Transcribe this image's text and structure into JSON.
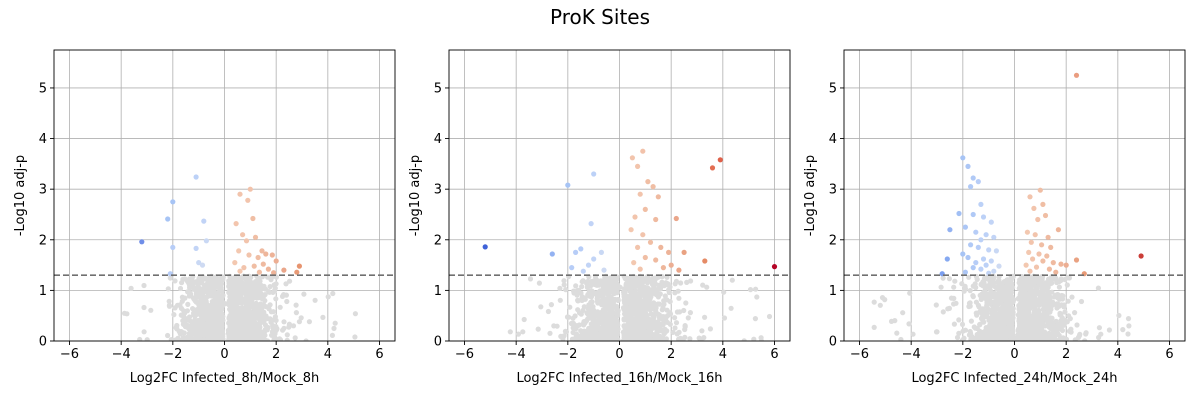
{
  "figure": {
    "title": "ProK Sites"
  },
  "chart_data": [
    {
      "type": "scatter",
      "xlabel": "Log2FC Infected_8h/Mock_8h",
      "ylabel": "-Log10 adj-p",
      "xlim": [
        -6.6,
        6.6
      ],
      "ylim": [
        0,
        5.75
      ],
      "xticks": [
        "−6",
        "−4",
        "−2",
        "0",
        "2",
        "4",
        "6"
      ],
      "yticks": [
        "0",
        "1",
        "2",
        "3",
        "4",
        "5"
      ],
      "grid": true,
      "threshold_y": 1.3,
      "background_seed": 8,
      "background_count": 1400,
      "background_xrange": [
        -4,
        6
      ],
      "colors": {
        "background": "#dcdcdc",
        "threshold": "#707070"
      },
      "significant_points": [
        {
          "x": -3.2,
          "y": 1.96,
          "color": "#6f8ee8"
        },
        {
          "x": -2.2,
          "y": 2.41,
          "color": "#a7c4f5"
        },
        {
          "x": -2.0,
          "y": 2.75,
          "color": "#a7c4f5"
        },
        {
          "x": -1.1,
          "y": 3.24,
          "color": "#bcd1f7"
        },
        {
          "x": -0.8,
          "y": 2.37,
          "color": "#c1d3f6"
        },
        {
          "x": -2.0,
          "y": 1.85,
          "color": "#b7cdf7"
        },
        {
          "x": -1.1,
          "y": 1.83,
          "color": "#c2d4f6"
        },
        {
          "x": -0.7,
          "y": 1.98,
          "color": "#c9d8f4"
        },
        {
          "x": -1.0,
          "y": 1.55,
          "color": "#c9d8f4"
        },
        {
          "x": -0.85,
          "y": 1.5,
          "color": "#cedaf2"
        },
        {
          "x": -2.1,
          "y": 1.33,
          "color": "#b7cdf7"
        },
        {
          "x": 0.45,
          "y": 2.32,
          "color": "#f3c5ad"
        },
        {
          "x": 0.6,
          "y": 2.9,
          "color": "#f2c4ac"
        },
        {
          "x": 0.7,
          "y": 2.1,
          "color": "#f2c4ac"
        },
        {
          "x": 0.9,
          "y": 2.78,
          "color": "#f2c4ac"
        },
        {
          "x": 1.0,
          "y": 3.0,
          "color": "#f2c2aa"
        },
        {
          "x": 1.1,
          "y": 2.42,
          "color": "#f0bea4"
        },
        {
          "x": 1.2,
          "y": 2.05,
          "color": "#f0bea4"
        },
        {
          "x": 0.85,
          "y": 1.98,
          "color": "#f2c4ac"
        },
        {
          "x": 0.55,
          "y": 1.78,
          "color": "#f3c8b0"
        },
        {
          "x": 0.95,
          "y": 1.7,
          "color": "#f2c4ac"
        },
        {
          "x": 1.3,
          "y": 1.65,
          "color": "#f0bea4"
        },
        {
          "x": 1.45,
          "y": 1.78,
          "color": "#efbaa0"
        },
        {
          "x": 1.6,
          "y": 1.72,
          "color": "#eeb69b"
        },
        {
          "x": 1.85,
          "y": 1.7,
          "color": "#edb398"
        },
        {
          "x": 2.0,
          "y": 1.58,
          "color": "#ecae93"
        },
        {
          "x": 1.5,
          "y": 1.52,
          "color": "#efbaa0"
        },
        {
          "x": 1.15,
          "y": 1.48,
          "color": "#f0bea4"
        },
        {
          "x": 0.75,
          "y": 1.45,
          "color": "#f2c4ac"
        },
        {
          "x": 1.7,
          "y": 1.42,
          "color": "#eeb69b"
        },
        {
          "x": 2.3,
          "y": 1.4,
          "color": "#eaa68a"
        },
        {
          "x": 2.9,
          "y": 1.48,
          "color": "#e7946f"
        },
        {
          "x": 2.8,
          "y": 1.36,
          "color": "#e89a76"
        },
        {
          "x": 0.4,
          "y": 1.55,
          "color": "#f3c8b0"
        },
        {
          "x": 1.35,
          "y": 1.36,
          "color": "#f0bea4"
        },
        {
          "x": 0.6,
          "y": 1.38,
          "color": "#f3c8b0"
        },
        {
          "x": 1.9,
          "y": 1.35,
          "color": "#edb398"
        }
      ]
    },
    {
      "type": "scatter",
      "xlabel": "Log2FC Infected_16h/Mock_16h",
      "ylabel": "-Log10 adj-p",
      "xlim": [
        -6.6,
        6.6
      ],
      "ylim": [
        0,
        5.75
      ],
      "xticks": [
        "−6",
        "−4",
        "−2",
        "0",
        "2",
        "4",
        "6"
      ],
      "yticks": [
        "0",
        "1",
        "2",
        "3",
        "4",
        "5"
      ],
      "grid": true,
      "threshold_y": 1.3,
      "background_seed": 16,
      "background_count": 1400,
      "background_xrange": [
        -4.5,
        6
      ],
      "colors": {
        "background": "#dcdcdc",
        "threshold": "#707070"
      },
      "significant_points": [
        {
          "x": -5.2,
          "y": 1.86,
          "color": "#3f62d8"
        },
        {
          "x": -2.6,
          "y": 1.72,
          "color": "#93b2f2"
        },
        {
          "x": -2.0,
          "y": 3.08,
          "color": "#a7c4f5"
        },
        {
          "x": -1.0,
          "y": 3.3,
          "color": "#bcd1f7"
        },
        {
          "x": -1.1,
          "y": 2.32,
          "color": "#c1d3f6"
        },
        {
          "x": -1.5,
          "y": 1.82,
          "color": "#b7cdf7"
        },
        {
          "x": -1.7,
          "y": 1.75,
          "color": "#b7cdf7"
        },
        {
          "x": -1.0,
          "y": 1.62,
          "color": "#c2d4f6"
        },
        {
          "x": -0.7,
          "y": 1.75,
          "color": "#c9d8f4"
        },
        {
          "x": -1.2,
          "y": 1.5,
          "color": "#c2d4f6"
        },
        {
          "x": -1.85,
          "y": 1.45,
          "color": "#b7cdf7"
        },
        {
          "x": -0.6,
          "y": 1.4,
          "color": "#cedaf2"
        },
        {
          "x": -1.4,
          "y": 1.38,
          "color": "#c2d4f6"
        },
        {
          "x": 0.5,
          "y": 3.62,
          "color": "#f2c4ac"
        },
        {
          "x": 0.9,
          "y": 3.75,
          "color": "#f2c2aa"
        },
        {
          "x": 0.7,
          "y": 3.45,
          "color": "#f2c4ac"
        },
        {
          "x": 1.1,
          "y": 3.15,
          "color": "#f0bea4"
        },
        {
          "x": 1.3,
          "y": 3.05,
          "color": "#f0bea4"
        },
        {
          "x": 0.8,
          "y": 2.9,
          "color": "#f2c4ac"
        },
        {
          "x": 1.5,
          "y": 2.85,
          "color": "#efbaa0"
        },
        {
          "x": 1.0,
          "y": 2.6,
          "color": "#f0bea4"
        },
        {
          "x": 0.6,
          "y": 2.45,
          "color": "#f2c4ac"
        },
        {
          "x": 1.4,
          "y": 2.4,
          "color": "#efbaa0"
        },
        {
          "x": 2.2,
          "y": 2.42,
          "color": "#eaa68a"
        },
        {
          "x": 0.45,
          "y": 2.2,
          "color": "#f3c8b0"
        },
        {
          "x": 0.9,
          "y": 2.1,
          "color": "#f2c4ac"
        },
        {
          "x": 1.2,
          "y": 1.95,
          "color": "#f0bea4"
        },
        {
          "x": 0.7,
          "y": 1.85,
          "color": "#f2c4ac"
        },
        {
          "x": 1.6,
          "y": 1.85,
          "color": "#eeb69b"
        },
        {
          "x": 1.9,
          "y": 1.75,
          "color": "#edb398"
        },
        {
          "x": 2.5,
          "y": 1.75,
          "color": "#e9a282"
        },
        {
          "x": 1.0,
          "y": 1.65,
          "color": "#f0bea4"
        },
        {
          "x": 1.4,
          "y": 1.6,
          "color": "#efbaa0"
        },
        {
          "x": 0.55,
          "y": 1.55,
          "color": "#f3c8b0"
        },
        {
          "x": 2.0,
          "y": 1.5,
          "color": "#ecae93"
        },
        {
          "x": 1.7,
          "y": 1.45,
          "color": "#eeb69b"
        },
        {
          "x": 0.8,
          "y": 1.42,
          "color": "#f2c4ac"
        },
        {
          "x": 2.3,
          "y": 1.4,
          "color": "#eaa68a"
        },
        {
          "x": 3.3,
          "y": 1.58,
          "color": "#e58b66"
        },
        {
          "x": 3.6,
          "y": 3.42,
          "color": "#e36e52"
        },
        {
          "x": 3.9,
          "y": 3.58,
          "color": "#df6049"
        },
        {
          "x": 6.0,
          "y": 1.47,
          "color": "#b40426"
        }
      ]
    },
    {
      "type": "scatter",
      "xlabel": "Log2FC Infected_24h/Mock_24h",
      "ylabel": "-Log10 adj-p",
      "xlim": [
        -6.6,
        6.6
      ],
      "ylim": [
        0,
        5.75
      ],
      "xticks": [
        "−6",
        "−4",
        "−2",
        "0",
        "2",
        "4",
        "6"
      ],
      "yticks": [
        "0",
        "1",
        "2",
        "3",
        "4",
        "5"
      ],
      "grid": true,
      "threshold_y": 1.3,
      "background_seed": 24,
      "background_count": 1400,
      "background_xrange": [
        -5.5,
        4.5
      ],
      "colors": {
        "background": "#dcdcdc",
        "threshold": "#707070"
      },
      "significant_points": [
        {
          "x": -2.8,
          "y": 1.33,
          "color": "#7b9ff0"
        },
        {
          "x": -2.6,
          "y": 1.62,
          "color": "#86a9f1"
        },
        {
          "x": -2.5,
          "y": 2.2,
          "color": "#93b2f2"
        },
        {
          "x": -2.15,
          "y": 2.52,
          "color": "#a1bff4"
        },
        {
          "x": -2.0,
          "y": 3.62,
          "color": "#a7c4f5"
        },
        {
          "x": -1.8,
          "y": 3.45,
          "color": "#acc6f5"
        },
        {
          "x": -1.6,
          "y": 3.22,
          "color": "#b0c9f6"
        },
        {
          "x": -1.7,
          "y": 3.05,
          "color": "#b0c9f6"
        },
        {
          "x": -1.4,
          "y": 3.15,
          "color": "#b7cdf7"
        },
        {
          "x": -1.3,
          "y": 2.7,
          "color": "#bcd1f7"
        },
        {
          "x": -1.6,
          "y": 2.5,
          "color": "#b0c9f6"
        },
        {
          "x": -1.2,
          "y": 2.45,
          "color": "#bcd1f7"
        },
        {
          "x": -0.9,
          "y": 2.35,
          "color": "#c2d4f6"
        },
        {
          "x": -1.9,
          "y": 2.25,
          "color": "#acc6f5"
        },
        {
          "x": -1.5,
          "y": 2.15,
          "color": "#b7cdf7"
        },
        {
          "x": -1.1,
          "y": 2.1,
          "color": "#bcd1f7"
        },
        {
          "x": -1.3,
          "y": 2.0,
          "color": "#bcd1f7"
        },
        {
          "x": -0.8,
          "y": 2.05,
          "color": "#c2d4f6"
        },
        {
          "x": -1.7,
          "y": 1.9,
          "color": "#b0c9f6"
        },
        {
          "x": -1.4,
          "y": 1.85,
          "color": "#b7cdf7"
        },
        {
          "x": -1.0,
          "y": 1.8,
          "color": "#c2d4f6"
        },
        {
          "x": -0.7,
          "y": 1.78,
          "color": "#c9d8f4"
        },
        {
          "x": -2.0,
          "y": 1.72,
          "color": "#a7c4f5"
        },
        {
          "x": -1.8,
          "y": 1.65,
          "color": "#acc6f5"
        },
        {
          "x": -1.2,
          "y": 1.62,
          "color": "#bcd1f7"
        },
        {
          "x": -0.9,
          "y": 1.58,
          "color": "#c2d4f6"
        },
        {
          "x": -1.5,
          "y": 1.55,
          "color": "#b7cdf7"
        },
        {
          "x": -1.1,
          "y": 1.5,
          "color": "#bcd1f7"
        },
        {
          "x": -0.6,
          "y": 1.48,
          "color": "#cedaf2"
        },
        {
          "x": -1.6,
          "y": 1.45,
          "color": "#b0c9f6"
        },
        {
          "x": -1.3,
          "y": 1.42,
          "color": "#bcd1f7"
        },
        {
          "x": -0.8,
          "y": 1.38,
          "color": "#c9d8f4"
        },
        {
          "x": -1.9,
          "y": 1.36,
          "color": "#acc6f5"
        },
        {
          "x": -1.0,
          "y": 1.34,
          "color": "#c2d4f6"
        },
        {
          "x": 0.6,
          "y": 2.85,
          "color": "#f2c4ac"
        },
        {
          "x": 0.75,
          "y": 2.62,
          "color": "#f2c4ac"
        },
        {
          "x": 1.0,
          "y": 2.98,
          "color": "#f0bea4"
        },
        {
          "x": 1.1,
          "y": 2.7,
          "color": "#f0bea4"
        },
        {
          "x": 0.9,
          "y": 2.4,
          "color": "#f2c2aa"
        },
        {
          "x": 1.2,
          "y": 2.48,
          "color": "#f0bea4"
        },
        {
          "x": 0.5,
          "y": 2.15,
          "color": "#f3c8b0"
        },
        {
          "x": 0.8,
          "y": 2.1,
          "color": "#f2c4ac"
        },
        {
          "x": 1.3,
          "y": 2.05,
          "color": "#efbaa0"
        },
        {
          "x": 1.7,
          "y": 2.2,
          "color": "#eeb69b"
        },
        {
          "x": 0.65,
          "y": 1.95,
          "color": "#f2c4ac"
        },
        {
          "x": 1.05,
          "y": 1.9,
          "color": "#f0bea4"
        },
        {
          "x": 1.4,
          "y": 1.85,
          "color": "#efbaa0"
        },
        {
          "x": 0.55,
          "y": 1.75,
          "color": "#f3c8b0"
        },
        {
          "x": 0.95,
          "y": 1.72,
          "color": "#f2c2aa"
        },
        {
          "x": 1.25,
          "y": 1.68,
          "color": "#f0bea4"
        },
        {
          "x": 0.7,
          "y": 1.62,
          "color": "#f2c4ac"
        },
        {
          "x": 1.1,
          "y": 1.58,
          "color": "#f0bea4"
        },
        {
          "x": 1.5,
          "y": 1.55,
          "color": "#efbaa0"
        },
        {
          "x": 1.8,
          "y": 1.52,
          "color": "#eeb69b"
        },
        {
          "x": 0.45,
          "y": 1.5,
          "color": "#f3c8b0"
        },
        {
          "x": 0.85,
          "y": 1.46,
          "color": "#f2c4ac"
        },
        {
          "x": 1.35,
          "y": 1.42,
          "color": "#efbaa0"
        },
        {
          "x": 2.0,
          "y": 1.5,
          "color": "#ecae93"
        },
        {
          "x": 0.6,
          "y": 1.38,
          "color": "#f2c4ac"
        },
        {
          "x": 1.6,
          "y": 1.36,
          "color": "#eeb69b"
        },
        {
          "x": 2.4,
          "y": 1.6,
          "color": "#e9a282"
        },
        {
          "x": 2.7,
          "y": 1.33,
          "color": "#e89a76"
        },
        {
          "x": 2.4,
          "y": 5.25,
          "color": "#ea9d80"
        },
        {
          "x": 4.9,
          "y": 1.68,
          "color": "#cb3e38"
        }
      ]
    }
  ]
}
